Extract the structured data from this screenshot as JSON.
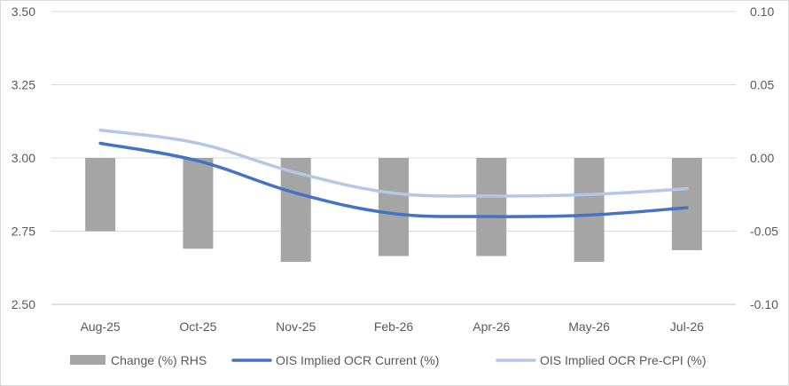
{
  "chart_data": {
    "type": "bar+line",
    "categories": [
      "Aug-25",
      "Oct-25",
      "Nov-25",
      "Feb-26",
      "Apr-26",
      "May-26",
      "Jul-26"
    ],
    "bar_series": {
      "name": "Change (%) RHS",
      "axis": "right",
      "color": "#a5a5a5",
      "values": [
        -0.05,
        -0.062,
        -0.071,
        -0.067,
        -0.067,
        -0.071,
        -0.063
      ]
    },
    "line_series": [
      {
        "name": "OIS Implied OCR Current (%)",
        "axis": "left",
        "color": "#4472c4",
        "values": [
          3.05,
          2.99,
          2.88,
          2.81,
          2.8,
          2.805,
          2.83
        ]
      },
      {
        "name": "OIS Implied OCR Pre-CPI (%)",
        "axis": "left",
        "color": "#b4c7e7",
        "values": [
          3.095,
          3.05,
          2.95,
          2.88,
          2.87,
          2.875,
          2.895
        ]
      }
    ],
    "y_left": {
      "min": 2.5,
      "max": 3.5,
      "ticks": [
        3.5,
        3.25,
        3.0,
        2.75,
        2.5
      ],
      "tick_labels": [
        "3.50",
        "3.25",
        "3.00",
        "2.75",
        "2.50"
      ]
    },
    "y_right": {
      "min": -0.1,
      "max": 0.1,
      "ticks": [
        0.1,
        0.05,
        0.0,
        -0.05,
        -0.1
      ],
      "tick_labels": [
        "0.10",
        "0.05",
        "0.00",
        "-0.05",
        "-0.10"
      ]
    },
    "grid": true,
    "legend_position": "bottom"
  }
}
